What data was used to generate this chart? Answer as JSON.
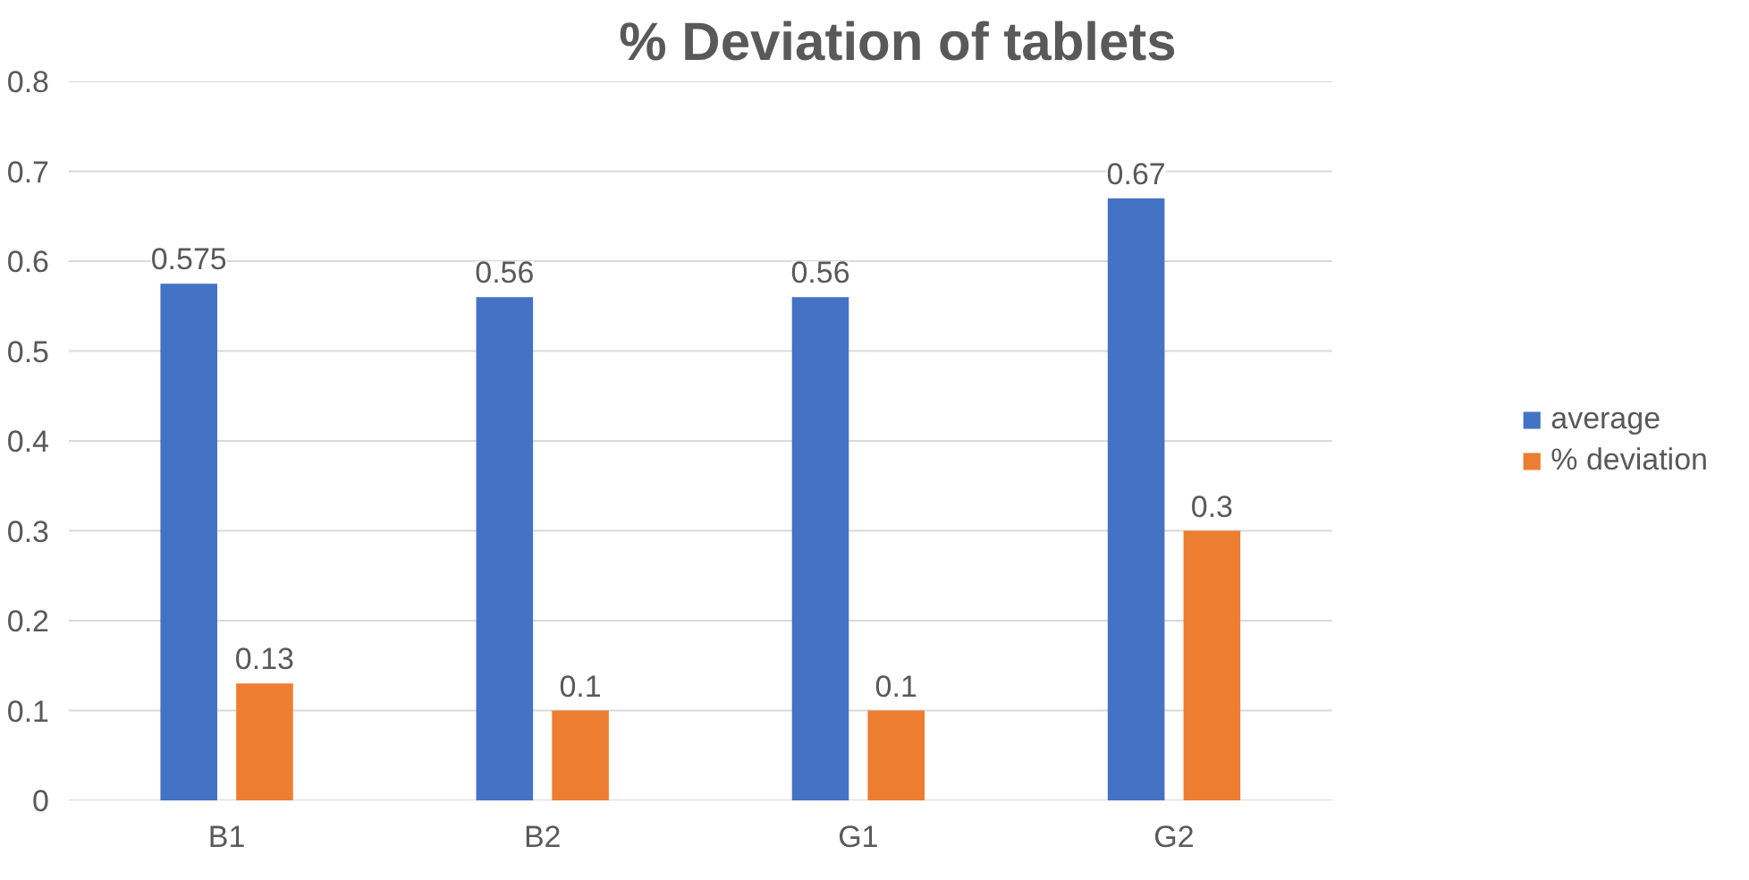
{
  "chart_data": {
    "type": "bar",
    "title": "% Deviation of tablets",
    "categories": [
      "B1",
      "B2",
      "G1",
      "G2"
    ],
    "series": [
      {
        "name": "average",
        "color": "#4472c4",
        "values": [
          0.575,
          0.56,
          0.56,
          0.67
        ]
      },
      {
        "name": "% deviation",
        "color": "#ed7d31",
        "values": [
          0.13,
          0.1,
          0.1,
          0.3
        ]
      }
    ],
    "ylim": [
      0,
      0.8
    ],
    "yticks": [
      0,
      0.1,
      0.2,
      0.3,
      0.4,
      0.5,
      0.6,
      0.7,
      0.8
    ],
    "grid": "y",
    "legend": "right",
    "data_labels": true
  }
}
